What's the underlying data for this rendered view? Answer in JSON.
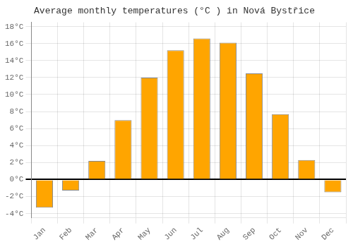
{
  "chart_data": {
    "type": "bar",
    "title": "Average monthly temperatures (°C ) in Nová Bystřice",
    "categories": [
      "Jan",
      "Feb",
      "Mar",
      "Apr",
      "May",
      "Jun",
      "Jul",
      "Aug",
      "Sep",
      "Oct",
      "Nov",
      "Dec"
    ],
    "values": [
      -3.3,
      -1.3,
      2.2,
      7.0,
      12.0,
      15.2,
      16.6,
      16.1,
      12.5,
      7.7,
      2.3,
      -1.5
    ],
    "color": "#FFA500",
    "ylim": [
      -4.5,
      18.5
    ],
    "yticks": [
      {
        "value": -4,
        "label": "-4°C"
      },
      {
        "value": -2,
        "label": "-2°C"
      },
      {
        "value": 0,
        "label": "0°C"
      },
      {
        "value": 2,
        "label": "2°C"
      },
      {
        "value": 4,
        "label": "4°C"
      },
      {
        "value": 6,
        "label": "6°C"
      },
      {
        "value": 8,
        "label": "8°C"
      },
      {
        "value": 10,
        "label": "10°C"
      },
      {
        "value": 12,
        "label": "12°C"
      },
      {
        "value": 14,
        "label": "14°C"
      },
      {
        "value": 16,
        "label": "16°C"
      },
      {
        "value": 18,
        "label": "18°C"
      }
    ],
    "grid": true
  }
}
